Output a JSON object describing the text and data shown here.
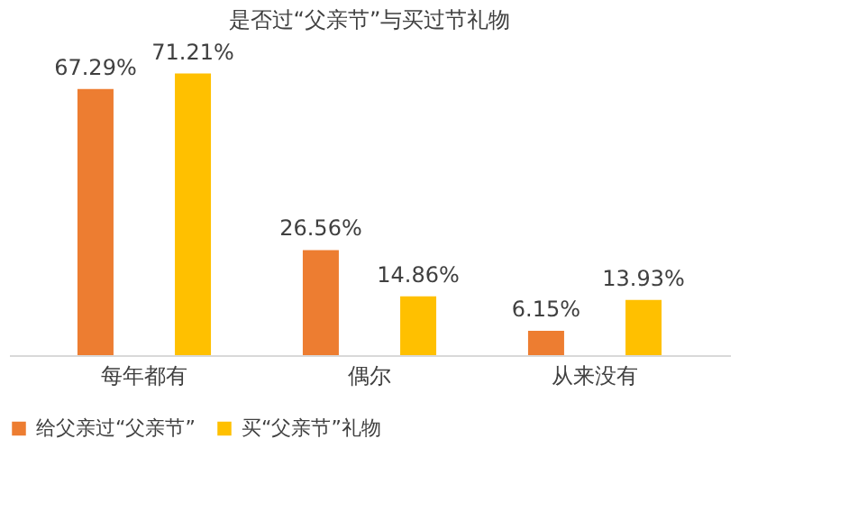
{
  "chart_data": {
    "type": "bar",
    "title": "是否过“父亲节”与买过节礼物",
    "categories": [
      "每年都有",
      "偶尔",
      "从来没有"
    ],
    "series": [
      {
        "name": "给父亲过“父亲节”",
        "color": "#ed7d31",
        "values": [
          67.29,
          26.56,
          6.15
        ],
        "value_labels": [
          "67.29%",
          "26.56%",
          "6.15%"
        ]
      },
      {
        "name": "买“父亲节”礼物",
        "color": "#ffc000",
        "values": [
          71.21,
          14.86,
          13.93
        ],
        "value_labels": [
          "71.21%",
          "14.86%",
          "13.93%"
        ]
      }
    ],
    "legend": "bottom",
    "grid": false,
    "tick_labels": "x"
  }
}
